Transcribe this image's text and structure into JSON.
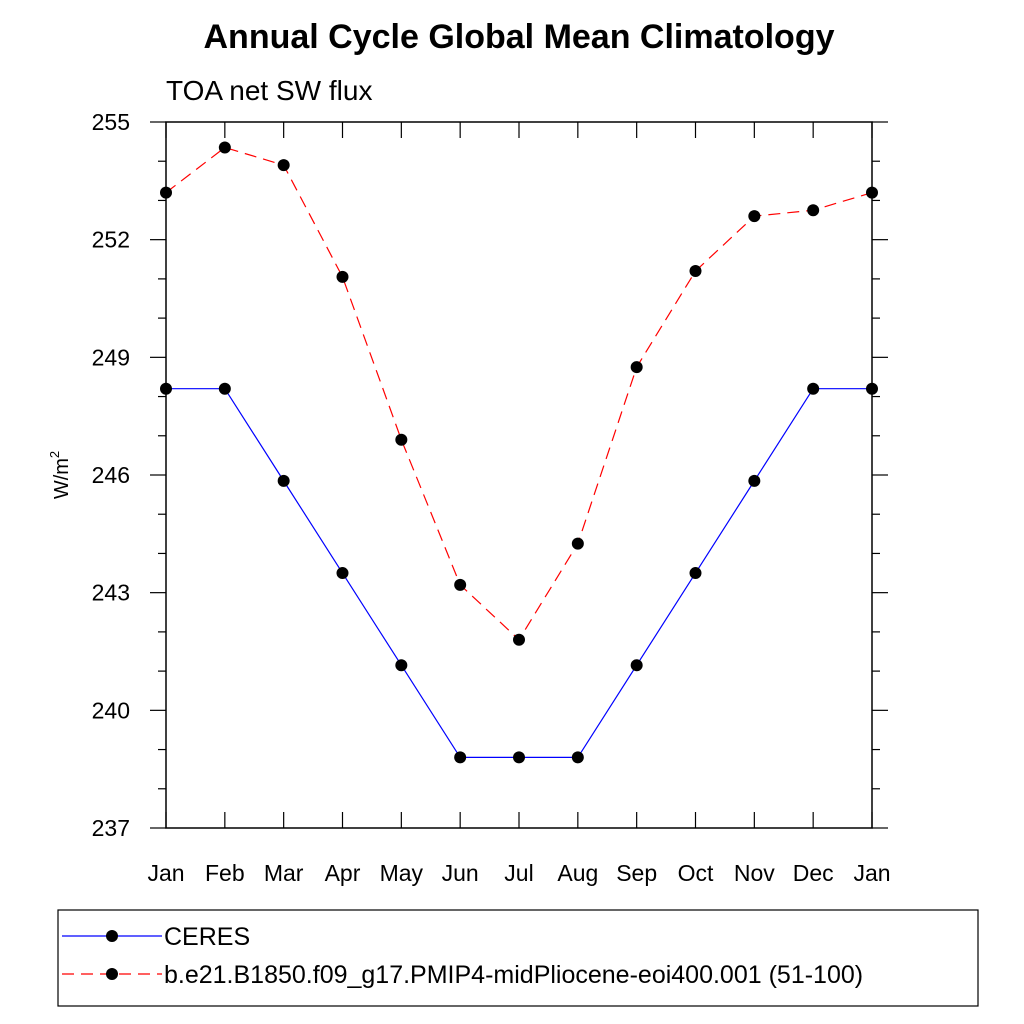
{
  "chart_data": {
    "type": "line",
    "title": "Annual Cycle Global Mean Climatology",
    "subtitle": "TOA net SW flux",
    "ylabel": "W/m",
    "ylabel_superscript": "2",
    "xlabel": "",
    "categories": [
      "Jan",
      "Feb",
      "Mar",
      "Apr",
      "May",
      "Jun",
      "Jul",
      "Aug",
      "Sep",
      "Oct",
      "Nov",
      "Dec",
      "Jan"
    ],
    "ylim": [
      237,
      255
    ],
    "yticks": [
      "237",
      "240",
      "243",
      "246",
      "249",
      "252",
      "255"
    ],
    "legend_position": "bottom",
    "series": [
      {
        "name": "CERES",
        "color": "#0000ff",
        "style": "solid",
        "values": [
          248.2,
          248.2,
          245.85,
          243.5,
          241.15,
          238.8,
          238.8,
          238.8,
          241.15,
          243.5,
          245.85,
          248.2,
          248.2
        ]
      },
      {
        "name": "b.e21.B1850.f09_g17.PMIP4-midPliocene-eoi400.001 (51-100)",
        "color": "#ff0000",
        "style": "dashed",
        "values": [
          253.2,
          254.35,
          253.9,
          251.05,
          246.9,
          243.2,
          241.8,
          244.25,
          248.75,
          251.2,
          252.6,
          252.75,
          253.2
        ]
      }
    ]
  }
}
